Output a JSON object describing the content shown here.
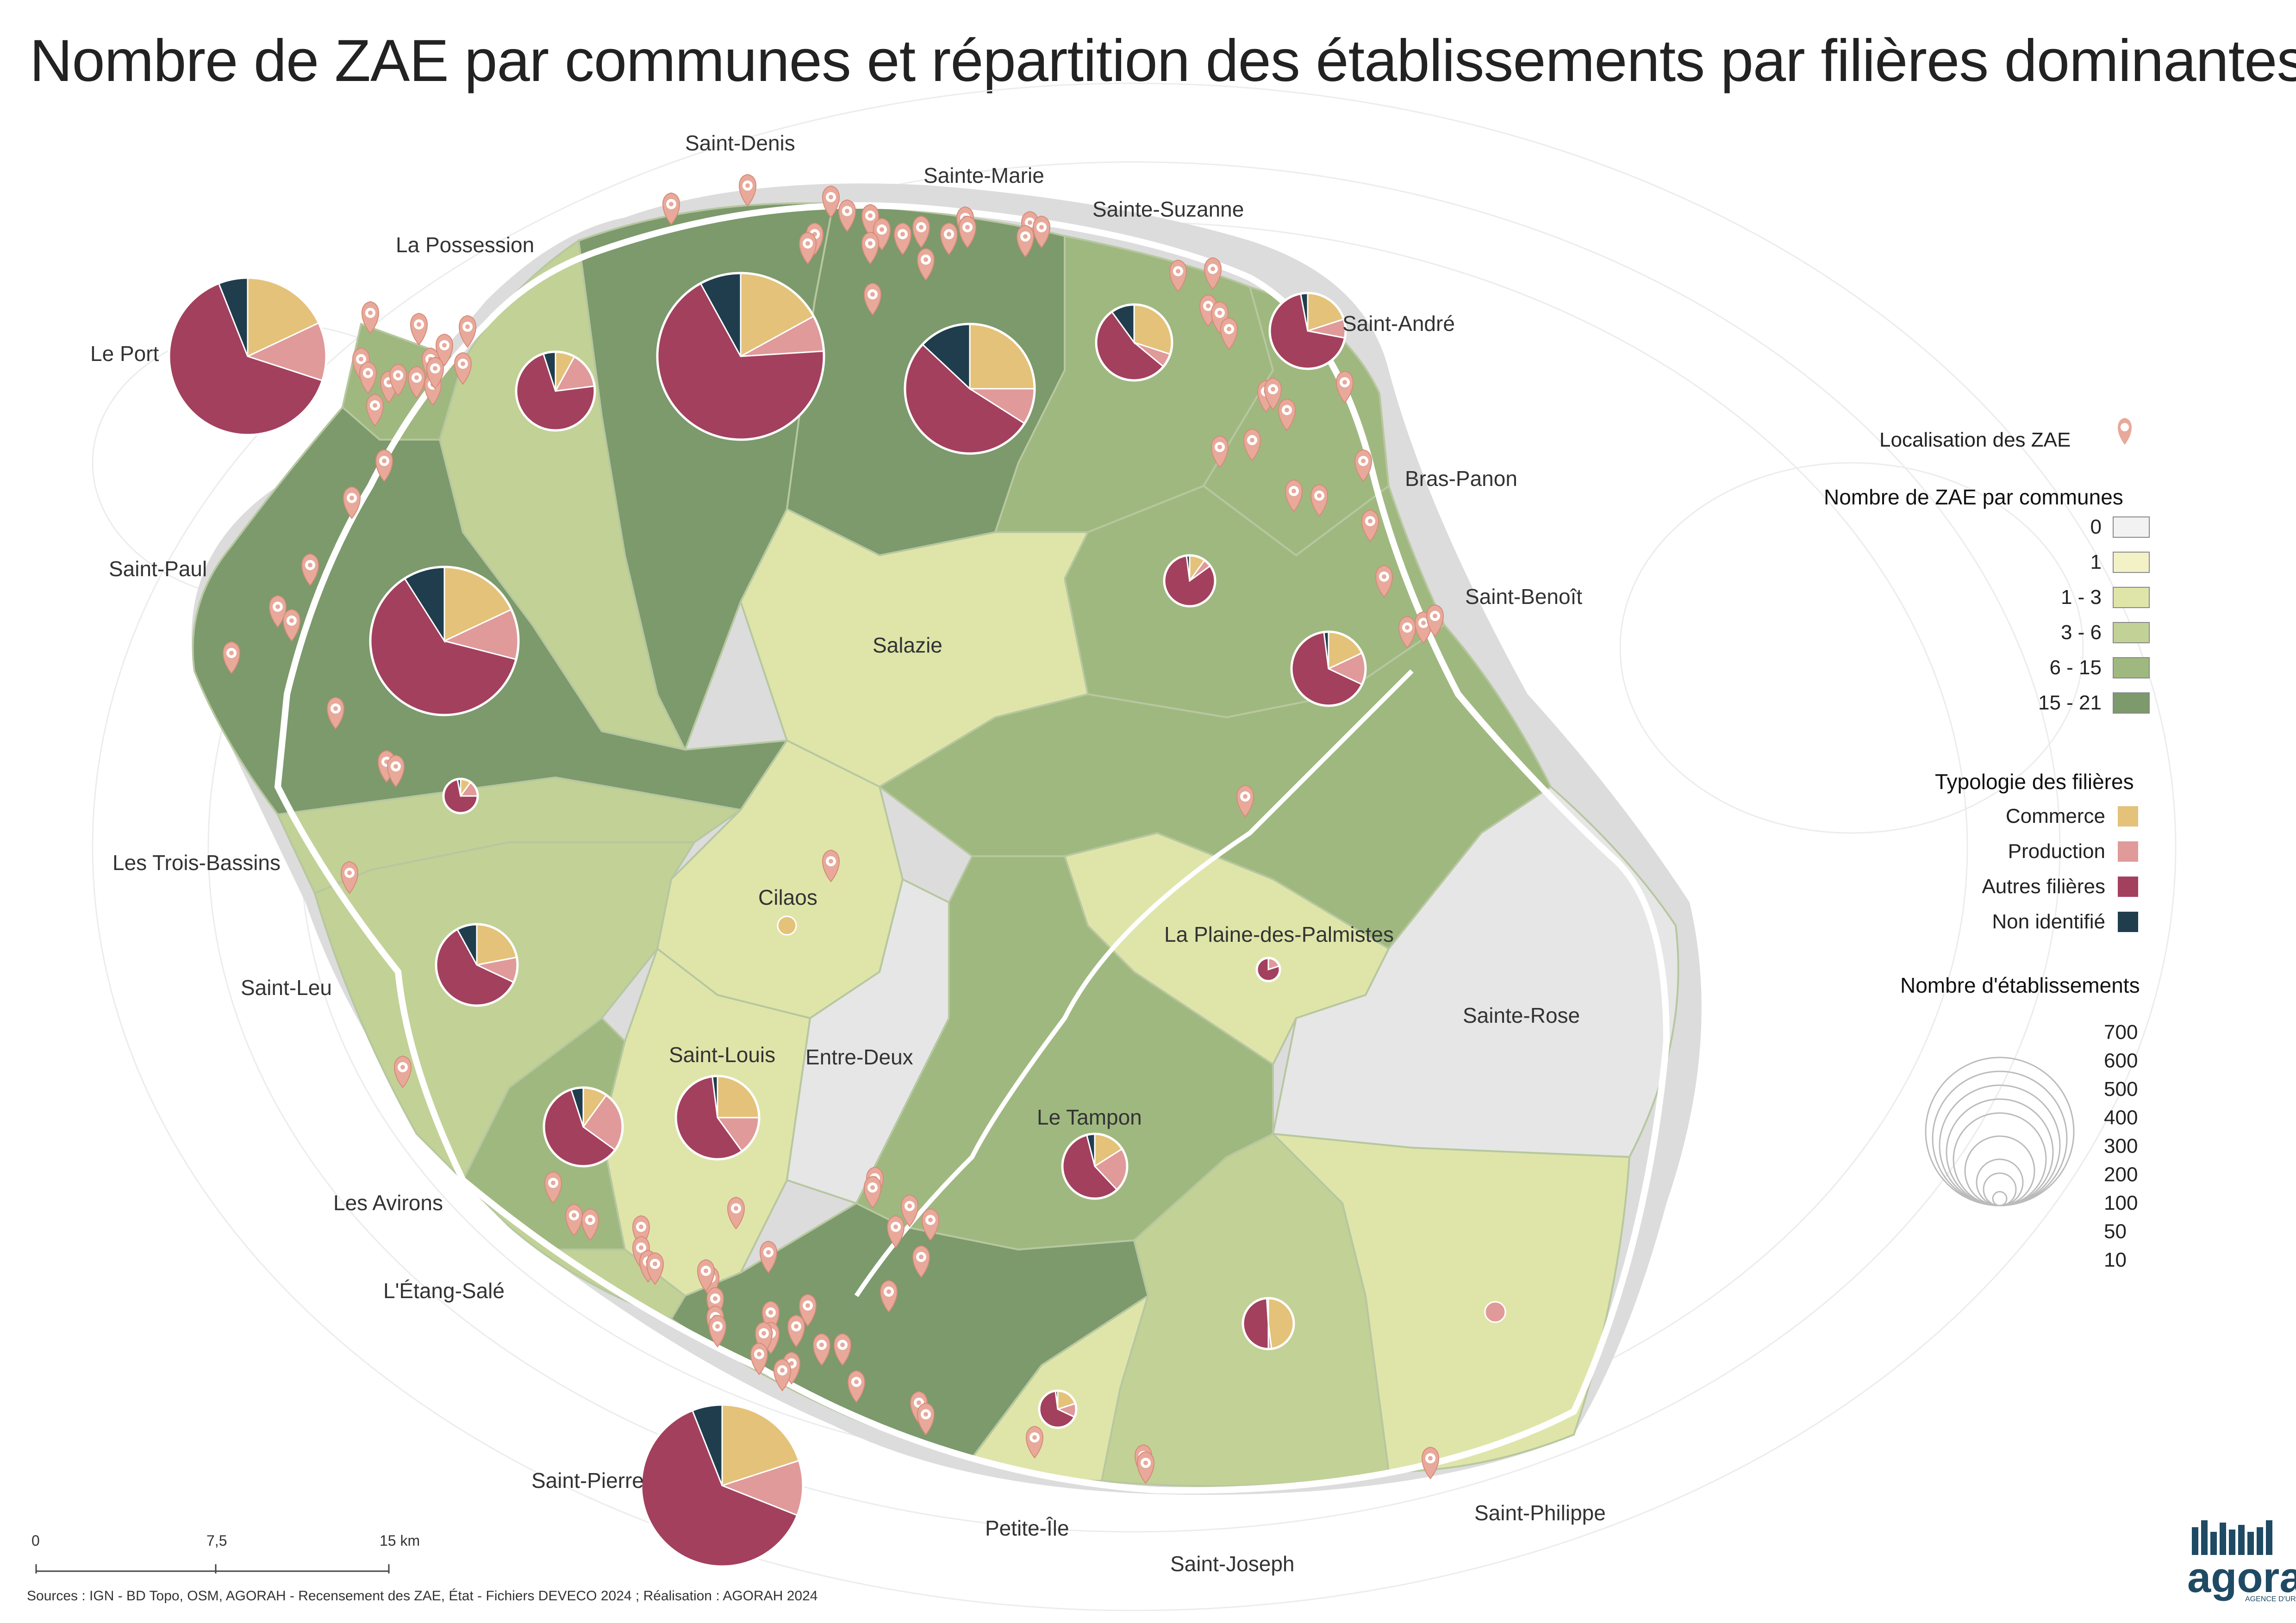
{
  "title": "Nombre de ZAE par communes et répartition des établissements par filières dominantes",
  "communes": [
    {
      "name": "Saint-Denis"
    },
    {
      "name": "Sainte-Marie"
    },
    {
      "name": "Sainte-Suzanne"
    },
    {
      "name": "La Possession"
    },
    {
      "name": "Saint-André"
    },
    {
      "name": "Le Port"
    },
    {
      "name": "Bras-Panon"
    },
    {
      "name": "Saint-Paul"
    },
    {
      "name": "Saint-Benoît"
    },
    {
      "name": "Salazie"
    },
    {
      "name": "Les Trois-Bassins"
    },
    {
      "name": "Cilaos"
    },
    {
      "name": "La Plaine-des-Palmistes"
    },
    {
      "name": "Saint-Leu"
    },
    {
      "name": "Sainte-Rose"
    },
    {
      "name": "Saint-Louis"
    },
    {
      "name": "Entre-Deux"
    },
    {
      "name": "Le Tampon"
    },
    {
      "name": "Les Avirons"
    },
    {
      "name": "L'Étang-Salé"
    },
    {
      "name": "Saint-Pierre"
    },
    {
      "name": "Petite-Île"
    },
    {
      "name": "Saint-Joseph"
    },
    {
      "name": "Saint-Philippe"
    }
  ],
  "legend": {
    "zae_location_label": "Localisation des ZAE",
    "zae_count_title": "Nombre de ZAE par communes",
    "zae_count_classes": [
      {
        "label": "0",
        "color": "#f2f2f2"
      },
      {
        "label": "1",
        "color": "#f3f1c6"
      },
      {
        "label": "1 - 3",
        "color": "#dfe5a9"
      },
      {
        "label": "3 - 6",
        "color": "#c2d196"
      },
      {
        "label": "6 - 15",
        "color": "#9fb87f"
      },
      {
        "label": "15 - 21",
        "color": "#7c9a6c"
      }
    ],
    "filieres_title": "Typologie des filières",
    "filieres": [
      {
        "label": "Commerce",
        "color": "#e4c27a"
      },
      {
        "label": "Production",
        "color": "#e09a9a"
      },
      {
        "label": "Autres filières",
        "color": "#a3405e"
      },
      {
        "label": "Non identifié",
        "color": "#1f3d4d"
      }
    ],
    "size_title": "Nombre d'établissements",
    "size_values": [
      "700",
      "600",
      "500",
      "400",
      "300",
      "200",
      "100",
      "50",
      "10"
    ]
  },
  "scale_bar": {
    "labels": [
      "0",
      "7,5",
      "15 km"
    ]
  },
  "source": "Sources : IGN - BD Topo, OSM, AGORAH - Recensement des ZAE, État - Fichiers DEVECO 2024 ; Réalisation : AGORAH 2024",
  "logo": {
    "name": "agorah",
    "subtitle": "AGENCE D'URBANISME DE LA RÉUNION"
  },
  "colors": {
    "road": "#ffffff",
    "marker": "#e8a99a"
  }
}
